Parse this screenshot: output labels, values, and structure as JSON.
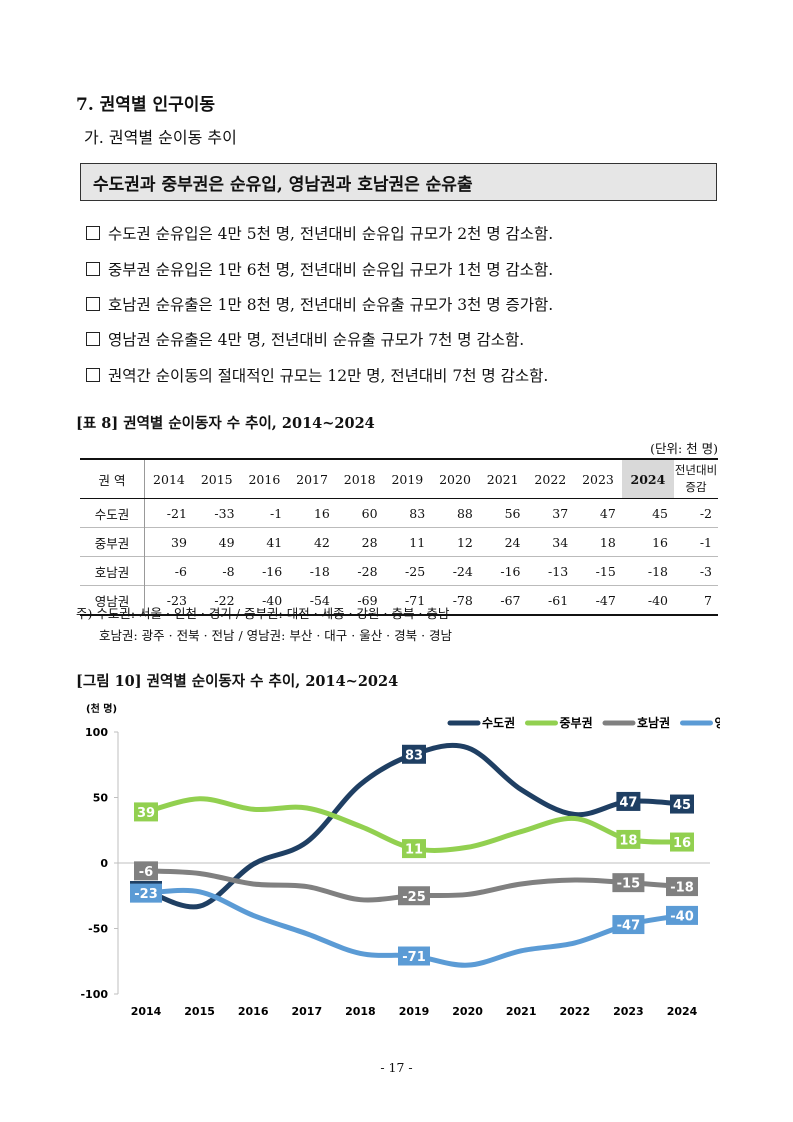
{
  "section": {
    "title": "7. 권역별 인구이동",
    "subtitle": "가. 권역별 순이동 추이"
  },
  "summary_box": "수도권과 중부권은 순유입, 영남권과 호남권은 순유출",
  "bullets": [
    "수도권 순유입은 4만 5천 명, 전년대비 순유입 규모가 2천 명 감소함.",
    "중부권 순유입은 1만 6천 명, 전년대비 순유입 규모가 1천 명 감소함.",
    "호남권 순유출은 1만 8천 명, 전년대비 순유출 규모가 3천 명 증가함.",
    "영남권 순유출은 4만 명, 전년대비 순유출 규모가 7천 명 감소함.",
    "권역간 순이동의 절대적인 규모는 12만 명, 전년대비 7천 명 감소함."
  ],
  "table": {
    "title": "[표 8] 권역별 순이동자 수 추이, 2014~2024",
    "unit": "(단위: 천 명)",
    "header_region": "권 역",
    "header_yoy": [
      "전년대비",
      "증감"
    ],
    "years": [
      "2014",
      "2015",
      "2016",
      "2017",
      "2018",
      "2019",
      "2020",
      "2021",
      "2022",
      "2023",
      "2024"
    ],
    "rows": [
      {
        "region": "수도권",
        "values": [
          "-21",
          "-33",
          "-1",
          "16",
          "60",
          "83",
          "88",
          "56",
          "37",
          "47",
          "45"
        ],
        "yoy": "-2"
      },
      {
        "region": "중부권",
        "values": [
          "39",
          "49",
          "41",
          "42",
          "28",
          "11",
          "12",
          "24",
          "34",
          "18",
          "16"
        ],
        "yoy": "-1"
      },
      {
        "region": "호남권",
        "values": [
          "-6",
          "-8",
          "-16",
          "-18",
          "-28",
          "-25",
          "-24",
          "-16",
          "-13",
          "-15",
          "-18"
        ],
        "yoy": "-3"
      },
      {
        "region": "영남권",
        "values": [
          "-23",
          "-22",
          "-40",
          "-54",
          "-69",
          "-71",
          "-78",
          "-67",
          "-61",
          "-47",
          "-40"
        ],
        "yoy": "7"
      }
    ]
  },
  "notes": [
    "주) 수도권: 서울 · 인천 · 경기 / 중부권: 대전 · 세종 · 강원 · 충북 · 충남",
    "호남권: 광주 · 전북 · 전남 / 영남권: 부산 · 대구 · 울산 · 경북 · 경남"
  ],
  "figure": {
    "title": "[그림 10] 권역별 순이동자 수 추이, 2014~2024"
  },
  "chart_data": {
    "type": "line",
    "ylabel": "(천 명)",
    "x": [
      "2014",
      "2015",
      "2016",
      "2017",
      "2018",
      "2019",
      "2020",
      "2021",
      "2022",
      "2023",
      "2024"
    ],
    "ylim": [
      -100,
      100
    ],
    "yticks": [
      "100",
      "50",
      "0",
      "-50",
      "-100"
    ],
    "legend_position": "top-right",
    "series": [
      {
        "name": "수도권",
        "color": "#1f3f63",
        "values": [
          -21,
          -33,
          -1,
          16,
          60,
          83,
          88,
          56,
          37,
          47,
          45
        ],
        "labels": [
          {
            "i": 0,
            "text": "-21"
          },
          {
            "i": 5,
            "text": "83"
          },
          {
            "i": 9,
            "text": "47"
          },
          {
            "i": 10,
            "text": "45"
          }
        ]
      },
      {
        "name": "중부권",
        "color": "#92d050",
        "values": [
          39,
          49,
          41,
          42,
          28,
          11,
          12,
          24,
          34,
          18,
          16
        ],
        "labels": [
          {
            "i": 0,
            "text": "39"
          },
          {
            "i": 5,
            "text": "11"
          },
          {
            "i": 9,
            "text": "18"
          },
          {
            "i": 10,
            "text": "16"
          }
        ]
      },
      {
        "name": "호남권",
        "color": "#808080",
        "values": [
          -6,
          -8,
          -16,
          -18,
          -28,
          -25,
          -24,
          -16,
          -13,
          -15,
          -18
        ],
        "labels": [
          {
            "i": 0,
            "text": "-6"
          },
          {
            "i": 5,
            "text": "-25"
          },
          {
            "i": 9,
            "text": "-15"
          },
          {
            "i": 10,
            "text": "-18"
          }
        ]
      },
      {
        "name": "영남권",
        "color": "#5b9bd5",
        "values": [
          -23,
          -22,
          -40,
          -54,
          -69,
          -71,
          -78,
          -67,
          -61,
          -47,
          -40
        ],
        "labels": [
          {
            "i": 0,
            "text": "-23"
          },
          {
            "i": 5,
            "text": "-71"
          },
          {
            "i": 9,
            "text": "-47"
          },
          {
            "i": 10,
            "text": "-40"
          }
        ]
      }
    ]
  },
  "page_number": "- 17 -"
}
